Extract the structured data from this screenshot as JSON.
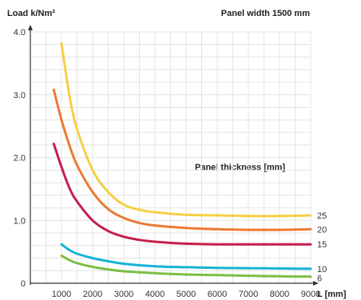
{
  "chart_data": {
    "type": "line",
    "ylabel": "Load k/Nm²",
    "xlabel": "L [mm]",
    "note": "Panel width 1500 mm",
    "legend_title": "Panel thickness  [mm]",
    "x_ticks": [
      "1000",
      "2000",
      "3000",
      "4000",
      "5000",
      "6000",
      "7000",
      "8000",
      "9000"
    ],
    "y_ticks": [
      "0",
      "1.0",
      "2.0",
      "3.0",
      "4.0"
    ],
    "xlim": [
      0,
      9000
    ],
    "ylim": [
      0,
      4.0
    ],
    "grid": true,
    "series": [
      {
        "name": "25",
        "color": "#f5cf45",
        "points": [
          [
            1000,
            3.82
          ],
          [
            1250,
            3.0
          ],
          [
            1500,
            2.45
          ],
          [
            2000,
            1.8
          ],
          [
            2500,
            1.45
          ],
          [
            3000,
            1.25
          ],
          [
            3500,
            1.17
          ],
          [
            4000,
            1.13
          ],
          [
            5000,
            1.09
          ],
          [
            6000,
            1.08
          ],
          [
            7000,
            1.07
          ],
          [
            8000,
            1.07
          ],
          [
            9000,
            1.08
          ]
        ]
      },
      {
        "name": "20",
        "color": "#ec7a33",
        "points": [
          [
            750,
            3.08
          ],
          [
            1000,
            2.6
          ],
          [
            1250,
            2.2
          ],
          [
            1500,
            1.88
          ],
          [
            2000,
            1.45
          ],
          [
            2500,
            1.18
          ],
          [
            3000,
            1.04
          ],
          [
            3500,
            0.96
          ],
          [
            4000,
            0.92
          ],
          [
            5000,
            0.88
          ],
          [
            6000,
            0.86
          ],
          [
            7000,
            0.85
          ],
          [
            8000,
            0.85
          ],
          [
            9000,
            0.86
          ]
        ]
      },
      {
        "name": "15",
        "color": "#c51f4d",
        "points": [
          [
            750,
            2.22
          ],
          [
            1000,
            1.85
          ],
          [
            1250,
            1.52
          ],
          [
            1500,
            1.3
          ],
          [
            2000,
            1.0
          ],
          [
            2500,
            0.83
          ],
          [
            3000,
            0.74
          ],
          [
            3500,
            0.69
          ],
          [
            4000,
            0.66
          ],
          [
            5000,
            0.63
          ],
          [
            6000,
            0.62
          ],
          [
            7000,
            0.62
          ],
          [
            8000,
            0.62
          ],
          [
            9000,
            0.62
          ]
        ]
      },
      {
        "name": "10",
        "color": "#19b2d6",
        "points": [
          [
            1000,
            0.62
          ],
          [
            1250,
            0.53
          ],
          [
            1500,
            0.47
          ],
          [
            2000,
            0.4
          ],
          [
            2500,
            0.35
          ],
          [
            3000,
            0.31
          ],
          [
            4000,
            0.27
          ],
          [
            5000,
            0.255
          ],
          [
            6000,
            0.245
          ],
          [
            7000,
            0.24
          ],
          [
            8000,
            0.235
          ],
          [
            9000,
            0.23
          ]
        ]
      },
      {
        "name": "6",
        "color": "#7bbf44",
        "points": [
          [
            1000,
            0.44
          ],
          [
            1250,
            0.37
          ],
          [
            1500,
            0.32
          ],
          [
            2000,
            0.26
          ],
          [
            2500,
            0.22
          ],
          [
            3000,
            0.19
          ],
          [
            4000,
            0.16
          ],
          [
            5000,
            0.14
          ],
          [
            6000,
            0.13
          ],
          [
            7000,
            0.12
          ],
          [
            8000,
            0.11
          ],
          [
            9000,
            0.105
          ]
        ]
      }
    ]
  }
}
